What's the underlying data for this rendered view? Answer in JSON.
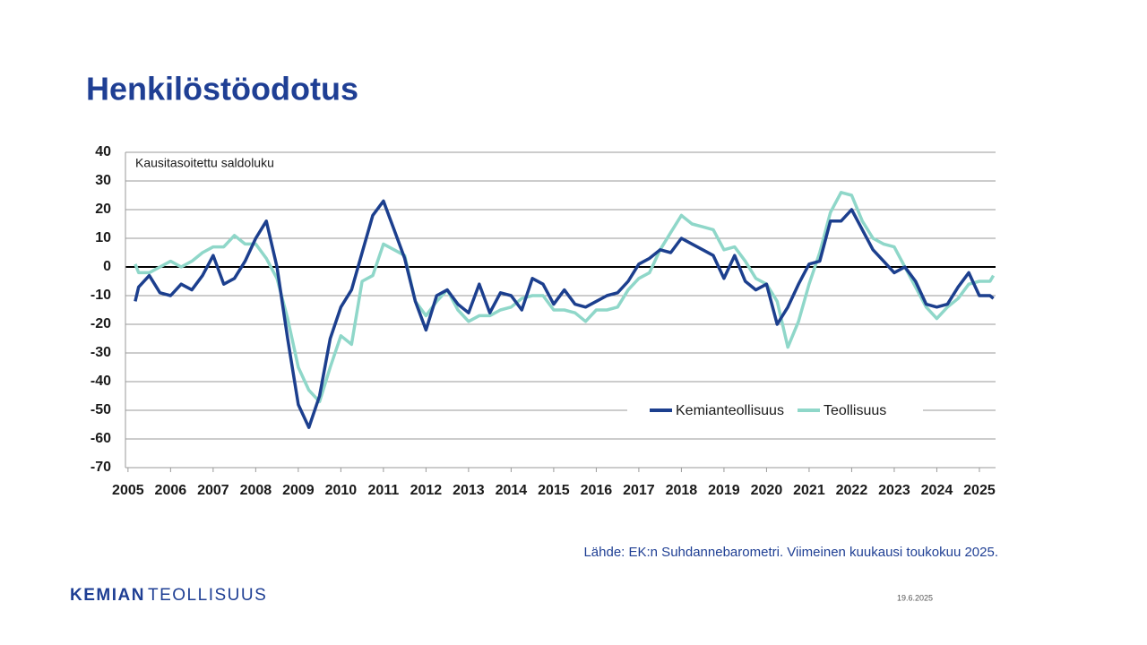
{
  "chart_data": {
    "type": "line",
    "title": "Henkilöstöodotus",
    "subtitle": "Kausitasoitettu saldoluku",
    "x": [
      2005.17,
      2005.25,
      2005.5,
      2005.75,
      2006,
      2006.25,
      2006.5,
      2006.75,
      2007,
      2007.25,
      2007.5,
      2007.75,
      2008,
      2008.25,
      2008.5,
      2008.75,
      2009,
      2009.25,
      2009.5,
      2009.75,
      2010,
      2010.25,
      2010.5,
      2010.75,
      2011,
      2011.25,
      2011.5,
      2011.75,
      2012,
      2012.25,
      2012.5,
      2012.75,
      2013,
      2013.25,
      2013.5,
      2013.75,
      2014,
      2014.25,
      2014.5,
      2014.75,
      2015,
      2015.25,
      2015.5,
      2015.75,
      2016,
      2016.25,
      2016.5,
      2016.75,
      2017,
      2017.25,
      2017.5,
      2017.75,
      2018,
      2018.25,
      2018.5,
      2018.75,
      2019,
      2019.25,
      2019.5,
      2019.75,
      2020,
      2020.25,
      2020.5,
      2020.75,
      2021,
      2021.25,
      2021.5,
      2021.75,
      2022,
      2022.25,
      2022.5,
      2022.75,
      2023,
      2023.25,
      2023.5,
      2023.75,
      2024,
      2024.25,
      2024.5,
      2024.75,
      2025,
      2025.25,
      2025.33
    ],
    "series": [
      {
        "name": "Kemianteollisuus",
        "color": "#1c3f8e",
        "values": [
          -12,
          -7,
          -3,
          -9,
          -10,
          -6,
          -8,
          -3,
          4,
          -6,
          -4,
          2,
          10,
          16,
          0,
          -25,
          -48,
          -56,
          -45,
          -25,
          -14,
          -8,
          5,
          18,
          23,
          13,
          3,
          -12,
          -22,
          -10,
          -8,
          -13,
          -16,
          -6,
          -16,
          -9,
          -10,
          -15,
          -4,
          -6,
          -13,
          -8,
          -13,
          -14,
          -12,
          -10,
          -9,
          -5,
          1,
          3,
          6,
          5,
          10,
          8,
          6,
          4,
          -4,
          4,
          -5,
          -8,
          -6,
          -20,
          -14,
          -6,
          1,
          2,
          16,
          16,
          20,
          13,
          6,
          2,
          -2,
          0,
          -5,
          -13,
          -14,
          -13,
          -7,
          -2,
          -10,
          -10,
          -11
        ]
      },
      {
        "name": "Teollisuus",
        "color": "#8fd7c9",
        "values": [
          1,
          -2,
          -2,
          0,
          2,
          0,
          2,
          5,
          7,
          7,
          11,
          8,
          8,
          3,
          -4,
          -18,
          -35,
          -43,
          -47,
          -35,
          -24,
          -27,
          -5,
          -3,
          8,
          6,
          4,
          -12,
          -17,
          -12,
          -8,
          -15,
          -19,
          -17,
          -17,
          -15,
          -14,
          -11,
          -10,
          -10,
          -15,
          -15,
          -16,
          -19,
          -15,
          -15,
          -14,
          -8,
          -4,
          -2,
          6,
          12,
          18,
          15,
          14,
          13,
          6,
          7,
          2,
          -4,
          -6,
          -12,
          -28,
          -19,
          -6,
          5,
          19,
          26,
          25,
          16,
          10,
          8,
          7,
          0,
          -7,
          -14,
          -18,
          -14,
          -11,
          -6,
          -5,
          -5,
          -3
        ]
      }
    ],
    "xlim": [
      2004.94,
      2025.38
    ],
    "xticks": [
      2005,
      2006,
      2007,
      2008,
      2009,
      2010,
      2011,
      2012,
      2013,
      2014,
      2015,
      2016,
      2017,
      2018,
      2019,
      2020,
      2021,
      2022,
      2023,
      2024,
      2025
    ],
    "ylim": [
      -70,
      40
    ],
    "yticks": [
      40,
      30,
      20,
      10,
      0,
      -10,
      -20,
      -30,
      -40,
      -50,
      -60,
      -70
    ],
    "grid": true,
    "zero_line": true
  },
  "footer": {
    "source": "Lähde: EK:n Suhdannebarometri. Viimeinen kuukausi toukokuu 2025.",
    "logo_bold": "KEMIAN",
    "logo_light": "TEOLLISUUS",
    "date": "19.6.2025"
  }
}
